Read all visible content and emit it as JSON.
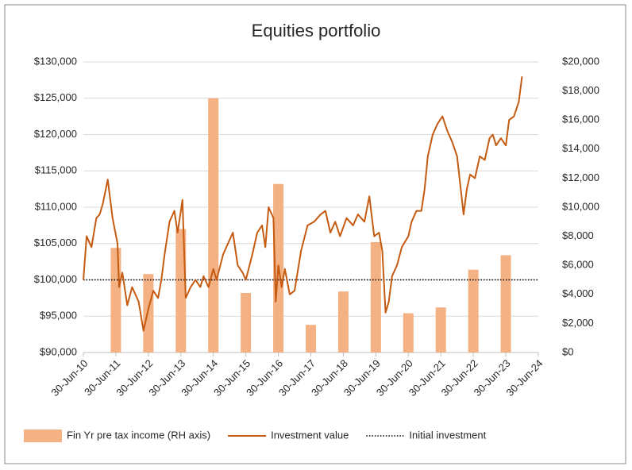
{
  "chart_data": {
    "type": "combo",
    "title": "Equities portfolio",
    "xlim": [
      2010.5,
      2024.5
    ],
    "xticks": [
      {
        "value": 2010.5,
        "label": "30-Jun-10"
      },
      {
        "value": 2011.5,
        "label": "30-Jun-11"
      },
      {
        "value": 2012.5,
        "label": "30-Jun-12"
      },
      {
        "value": 2013.5,
        "label": "30-Jun-13"
      },
      {
        "value": 2014.5,
        "label": "30-Jun-14"
      },
      {
        "value": 2015.5,
        "label": "30-Jun-15"
      },
      {
        "value": 2016.5,
        "label": "30-Jun-16"
      },
      {
        "value": 2017.5,
        "label": "30-Jun-17"
      },
      {
        "value": 2018.5,
        "label": "30-Jun-18"
      },
      {
        "value": 2019.5,
        "label": "30-Jun-19"
      },
      {
        "value": 2020.5,
        "label": "30-Jun-20"
      },
      {
        "value": 2021.5,
        "label": "30-Jun-21"
      },
      {
        "value": 2022.5,
        "label": "30-Jun-22"
      },
      {
        "value": 2023.5,
        "label": "30-Jun-23"
      },
      {
        "value": 2024.5,
        "label": "30-Jun-24"
      }
    ],
    "ylim": [
      90000,
      130000
    ],
    "yticks": [
      {
        "value": 90000,
        "label": "$90,000"
      },
      {
        "value": 95000,
        "label": "$95,000"
      },
      {
        "value": 100000,
        "label": "$100,000"
      },
      {
        "value": 105000,
        "label": "$105,000"
      },
      {
        "value": 110000,
        "label": "$110,000"
      },
      {
        "value": 115000,
        "label": "$115,000"
      },
      {
        "value": 120000,
        "label": "$120,000"
      },
      {
        "value": 125000,
        "label": "$125,000"
      },
      {
        "value": 130000,
        "label": "$130,000"
      }
    ],
    "y2lim": [
      0,
      20000
    ],
    "y2ticks": [
      {
        "value": 0,
        "label": "$0"
      },
      {
        "value": 2000,
        "label": "$2,000"
      },
      {
        "value": 4000,
        "label": "$4,000"
      },
      {
        "value": 6000,
        "label": "$6,000"
      },
      {
        "value": 8000,
        "label": "$8,000"
      },
      {
        "value": 10000,
        "label": "$10,000"
      },
      {
        "value": 12000,
        "label": "$12,000"
      },
      {
        "value": 14000,
        "label": "$14,000"
      },
      {
        "value": 16000,
        "label": "$16,000"
      },
      {
        "value": 18000,
        "label": "$18,000"
      },
      {
        "value": 20000,
        "label": "$20,000"
      }
    ],
    "grid": true,
    "legend": "bottom",
    "series": [
      {
        "name": "Fin Yr pre tax income (RH axis)",
        "type": "bar",
        "axis": "y2",
        "color": "#f4b183",
        "x": [
          2011.5,
          2012.5,
          2013.5,
          2014.5,
          2015.5,
          2016.5,
          2017.5,
          2018.5,
          2019.5,
          2020.5,
          2021.5,
          2022.5,
          2023.5
        ],
        "values": [
          7200,
          5400,
          8500,
          17500,
          4100,
          11600,
          1900,
          4200,
          7600,
          2700,
          3100,
          5700,
          6700
        ]
      },
      {
        "name": "Investment value",
        "type": "line",
        "color": "#c55a11",
        "x": [
          2010.5,
          2010.6,
          2010.75,
          2010.9,
          2011.0,
          2011.1,
          2011.25,
          2011.4,
          2011.55,
          2011.6,
          2011.7,
          2011.85,
          2012.0,
          2012.2,
          2012.35,
          2012.5,
          2012.65,
          2012.8,
          2012.9,
          2013.0,
          2013.15,
          2013.3,
          2013.4,
          2013.55,
          2013.65,
          2013.8,
          2013.95,
          2014.1,
          2014.2,
          2014.35,
          2014.5,
          2014.6,
          2014.8,
          2014.95,
          2015.1,
          2015.25,
          2015.4,
          2015.5,
          2015.7,
          2015.85,
          2016.0,
          2016.1,
          2016.2,
          2016.35,
          2016.42,
          2016.5,
          2016.6,
          2016.7,
          2016.85,
          2017.0,
          2017.2,
          2017.4,
          2017.6,
          2017.8,
          2017.95,
          2018.1,
          2018.25,
          2018.4,
          2018.6,
          2018.8,
          2018.95,
          2019.15,
          2019.3,
          2019.45,
          2019.6,
          2019.7,
          2019.8,
          2019.9,
          2020.0,
          2020.15,
          2020.3,
          2020.5,
          2020.6,
          2020.75,
          2020.9,
          2021.0,
          2021.1,
          2021.25,
          2021.4,
          2021.55,
          2021.7,
          2021.85,
          2022.0,
          2022.1,
          2022.2,
          2022.3,
          2022.4,
          2022.55,
          2022.7,
          2022.85,
          2023.0,
          2023.1,
          2023.2,
          2023.35,
          2023.5,
          2023.6,
          2023.75,
          2023.9,
          2024.0
        ],
        "values": [
          100000,
          106000,
          104500,
          108500,
          109000,
          110500,
          113800,
          108500,
          105000,
          99000,
          101000,
          96500,
          99000,
          97000,
          93000,
          96000,
          98500,
          97500,
          100000,
          103500,
          108000,
          109500,
          106500,
          111000,
          97500,
          99000,
          100000,
          99000,
          100500,
          99000,
          101500,
          100000,
          103500,
          105000,
          106500,
          102000,
          101000,
          100000,
          103500,
          106500,
          107500,
          104500,
          110000,
          108500,
          97000,
          102000,
          99000,
          101500,
          98000,
          98500,
          104000,
          107500,
          108000,
          109000,
          109500,
          106500,
          108000,
          106000,
          108500,
          107500,
          109000,
          108000,
          111500,
          106000,
          106500,
          104000,
          95500,
          97000,
          100500,
          102000,
          104500,
          106000,
          108000,
          109500,
          109500,
          112500,
          117000,
          120000,
          121500,
          122500,
          120500,
          119000,
          117000,
          113000,
          109000,
          112500,
          114500,
          114000,
          117000,
          116500,
          119500,
          120000,
          118500,
          119500,
          118500,
          122000,
          122500,
          124500,
          128000
        ]
      },
      {
        "name": "Initial investment",
        "type": "hline",
        "color": "#000000",
        "value": 100000
      }
    ]
  }
}
